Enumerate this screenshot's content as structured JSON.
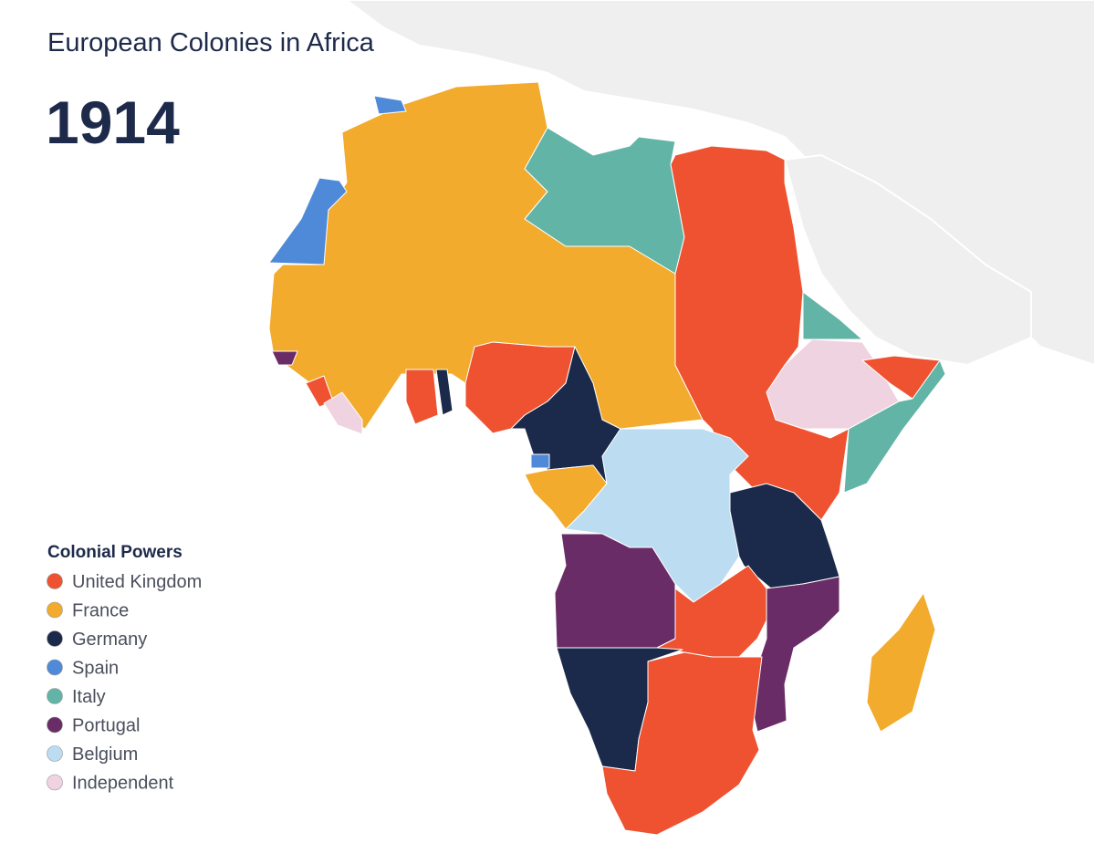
{
  "header": {
    "title": "European Colonies in Africa",
    "year": "1914"
  },
  "legend": {
    "title": "Colonial Powers",
    "items": [
      {
        "label": "United Kingdom",
        "color": "#ef5230"
      },
      {
        "label": "France",
        "color": "#f2ab2c"
      },
      {
        "label": "Germany",
        "color": "#1b2a4a"
      },
      {
        "label": "Spain",
        "color": "#4f8ad8"
      },
      {
        "label": "Italy",
        "color": "#62b4a6"
      },
      {
        "label": "Portugal",
        "color": "#6a2c66"
      },
      {
        "label": "Belgium",
        "color": "#bcdcf1"
      },
      {
        "label": "Independent",
        "color": "#f0d3e0"
      }
    ]
  }
}
